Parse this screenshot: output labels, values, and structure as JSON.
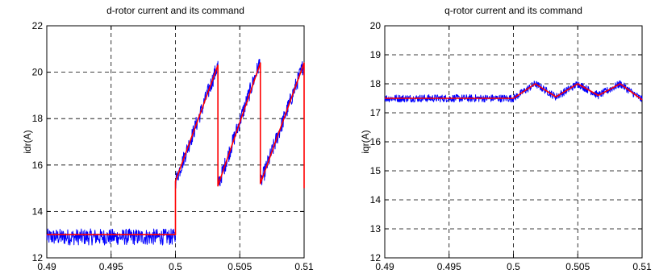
{
  "chart_data": [
    {
      "type": "line",
      "title": "d-rotor current and its command",
      "xlabel": "",
      "ylabel": "idr(A)",
      "xlim": [
        0.49,
        0.51
      ],
      "ylim": [
        12,
        22
      ],
      "xticks": [
        "0.49",
        "0.495",
        "0.5",
        "0.505",
        "0.51"
      ],
      "yticks": [
        "12",
        "14",
        "16",
        "18",
        "20",
        "22"
      ],
      "grid": true,
      "series": [
        {
          "color": "#0000ff",
          "noise": 0.35,
          "x": [
            0.49,
            0.5,
            0.5,
            0.5033,
            0.5033,
            0.5066,
            0.5066,
            0.51,
            0.51
          ],
          "y": [
            12.9,
            12.9,
            15.3,
            20.3,
            15.1,
            20.5,
            15.2,
            20.4,
            15.0
          ]
        },
        {
          "color": "#ff0000",
          "x": [
            0.49,
            0.5,
            0.5,
            0.5033,
            0.5033,
            0.5066,
            0.5066,
            0.51,
            0.51
          ],
          "y": [
            13.0,
            13.0,
            15.3,
            20.3,
            15.1,
            20.4,
            15.2,
            20.4,
            15.0
          ]
        }
      ]
    },
    {
      "type": "line",
      "title": "q-rotor current and its command",
      "xlabel": "",
      "ylabel": "iqr(A)",
      "xlim": [
        0.49,
        0.51
      ],
      "ylim": [
        12,
        20
      ],
      "xticks": [
        "0.49",
        "0.495",
        "0.5",
        "0.505",
        "0.51"
      ],
      "yticks": [
        "12",
        "13",
        "14",
        "15",
        "16",
        "17",
        "18",
        "19",
        "20"
      ],
      "grid": true,
      "series": [
        {
          "color": "#0000ff",
          "noise": 0.13,
          "x": [
            0.49,
            0.5,
            0.5017,
            0.5033,
            0.505,
            0.5066,
            0.5083,
            0.51
          ],
          "y": [
            17.5,
            17.5,
            18.0,
            17.55,
            18.0,
            17.6,
            18.0,
            17.45
          ]
        },
        {
          "color": "#ff0000",
          "x": [
            0.49,
            0.5,
            0.5017,
            0.5033,
            0.505,
            0.5066,
            0.5083,
            0.51
          ],
          "y": [
            17.5,
            17.5,
            18.0,
            17.55,
            18.0,
            17.6,
            18.0,
            17.45
          ]
        }
      ]
    }
  ]
}
